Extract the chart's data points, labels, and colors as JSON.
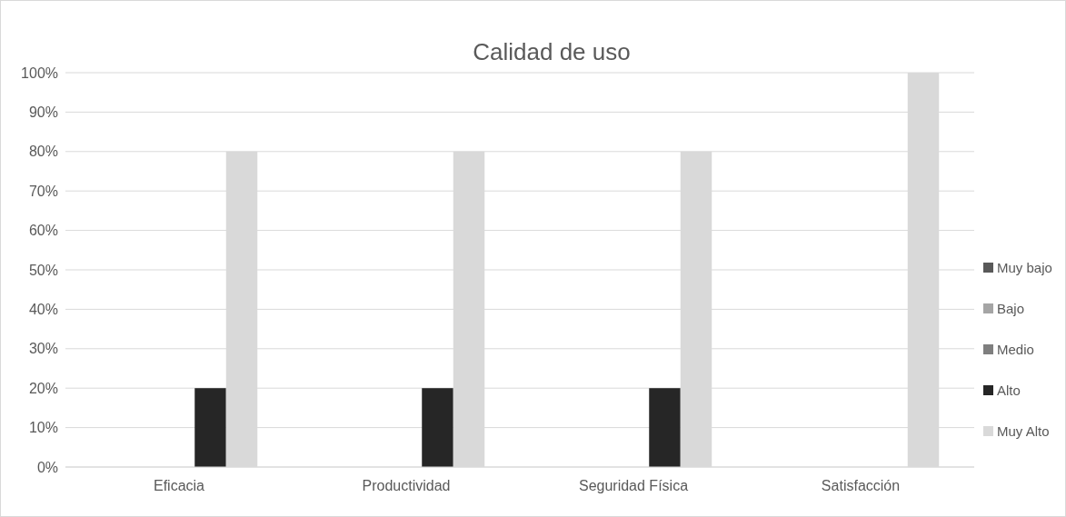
{
  "chart_data": {
    "type": "bar",
    "title": "Calidad de uso",
    "categories": [
      "Eficacia",
      "Productividad",
      "Seguridad Física",
      "Satisfacción"
    ],
    "series": [
      {
        "name": "Muy bajo",
        "color": "#595959",
        "values": [
          0,
          0,
          0,
          0
        ]
      },
      {
        "name": "Bajo",
        "color": "#a5a5a5",
        "values": [
          0,
          0,
          0,
          0
        ]
      },
      {
        "name": "Medio",
        "color": "#7f7f7f",
        "values": [
          0,
          0,
          0,
          0
        ]
      },
      {
        "name": "Alto",
        "color": "#262626",
        "values": [
          20,
          20,
          20,
          0
        ]
      },
      {
        "name": "Muy Alto",
        "color": "#d9d9d9",
        "values": [
          80,
          80,
          80,
          100
        ]
      }
    ],
    "ylim": [
      0,
      100
    ],
    "yticks": [
      {
        "value": 0,
        "label": "0%"
      },
      {
        "value": 10,
        "label": "10%"
      },
      {
        "value": 20,
        "label": "20%"
      },
      {
        "value": 30,
        "label": "30%"
      },
      {
        "value": 40,
        "label": "40%"
      },
      {
        "value": 50,
        "label": "50%"
      },
      {
        "value": 60,
        "label": "60%"
      },
      {
        "value": 70,
        "label": "70%"
      },
      {
        "value": 80,
        "label": "80%"
      },
      {
        "value": 90,
        "label": "90%"
      },
      {
        "value": 100,
        "label": "100%"
      }
    ],
    "grid": "y",
    "legend": "right"
  }
}
